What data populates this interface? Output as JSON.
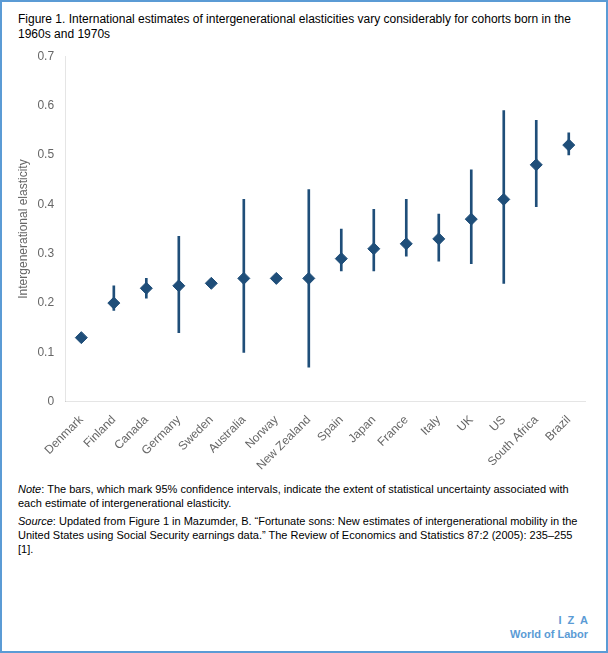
{
  "chart_data": {
    "type": "scatter",
    "title": "Figure 1. International estimates of intergenerational elasticities vary considerably for cohorts born in the 1960s and 1970s",
    "y_label": "Intergenerational elasticity",
    "categories": [
      "Denmark",
      "Finland",
      "Canada",
      "Germany",
      "Sweden",
      "Australia",
      "Norway",
      "New Zealand",
      "Spain",
      "Japan",
      "France",
      "Italy",
      "UK",
      "US",
      "South Africa",
      "Brazil"
    ],
    "values": [
      0.13,
      0.2,
      0.23,
      0.235,
      0.24,
      0.25,
      0.25,
      0.25,
      0.29,
      0.31,
      0.32,
      0.33,
      0.37,
      0.41,
      0.48,
      0.52
    ],
    "ci_lower": [
      0.13,
      0.185,
      0.21,
      0.14,
      0.235,
      0.1,
      0.245,
      0.07,
      0.265,
      0.265,
      0.295,
      0.285,
      0.28,
      0.24,
      0.395,
      0.5
    ],
    "ci_upper": [
      0.13,
      0.235,
      0.25,
      0.335,
      0.245,
      0.41,
      0.255,
      0.43,
      0.35,
      0.39,
      0.41,
      0.38,
      0.47,
      0.59,
      0.57,
      0.545
    ],
    "color": "#1f4e79",
    "marker": "diamond",
    "ylim": [
      0,
      0.7
    ],
    "yticks": [
      0,
      0.1,
      0.2,
      0.3,
      0.4,
      0.5,
      0.6,
      0.7
    ],
    "grid": false,
    "note": "Note: The bars, which mark 95% confidence intervals, indicate the extent of statistical uncertainty associated with each estimate of intergenerational elasticity.",
    "source": "Source: Updated from Figure 1 in Mazumder, B. “Fortunate sons: New estimates of intergenerational mobility in the United States using Social Security earnings data.” The Review of Economics and Statistics 87:2 (2005): 235–255 [1].",
    "annotations": [
      "I  Z  A",
      "World of Labor"
    ],
    "annotation_color": "#5b9bd5"
  }
}
